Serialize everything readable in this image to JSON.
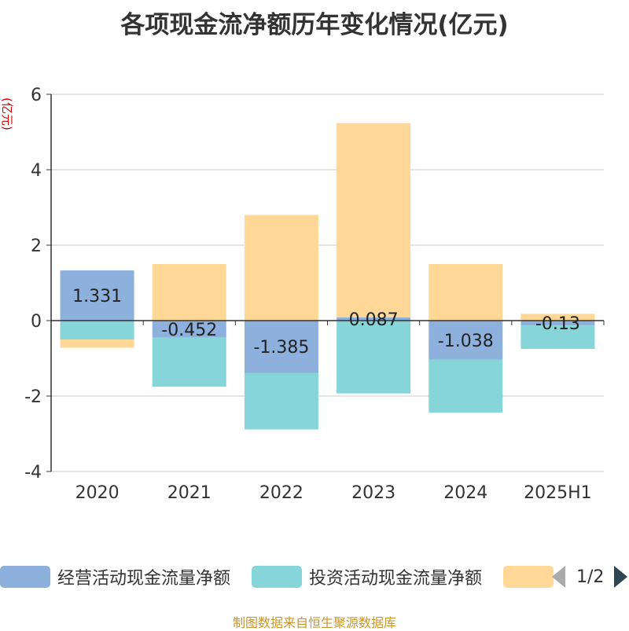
{
  "chart_data": {
    "type": "bar",
    "stacked": true,
    "title": "各项现金流净额历年变化情况(亿元)",
    "ylabel": "(亿元)",
    "xlabel": "",
    "categories": [
      "2020",
      "2021",
      "2022",
      "2023",
      "2024",
      "2025H1"
    ],
    "ylim": [
      -4,
      6
    ],
    "yticks": [
      6,
      4,
      2,
      0,
      -2,
      -4
    ],
    "grid": true,
    "legend_position": "bottom",
    "series": [
      {
        "name": "经营活动现金流量净额",
        "color": "#8eb0dd",
        "values": [
          1.331,
          -0.452,
          -1.385,
          0.087,
          -1.038,
          -0.13
        ],
        "labels": [
          "1.331",
          "-0.452",
          "-1.385",
          "0.087",
          "-1.038",
          "-0.13"
        ]
      },
      {
        "name": "投资活动现金流量净额",
        "color": "#86d5d8",
        "values": [
          -0.5,
          -1.3,
          -1.5,
          -1.93,
          -1.4,
          -0.62
        ]
      },
      {
        "name": "",
        "color": "#ffd898",
        "values": [
          -0.22,
          1.5,
          2.8,
          5.15,
          1.5,
          0.18
        ]
      }
    ]
  },
  "legend": {
    "item1": "经营活动现金流量净额",
    "item2": "投资活动现金流量净额",
    "page": "1/2"
  },
  "source": "制图数据来自恒生聚源数据库",
  "colors": {
    "axis": "#333333",
    "grid": "#cccccc",
    "ylabel": "#cc0000"
  }
}
